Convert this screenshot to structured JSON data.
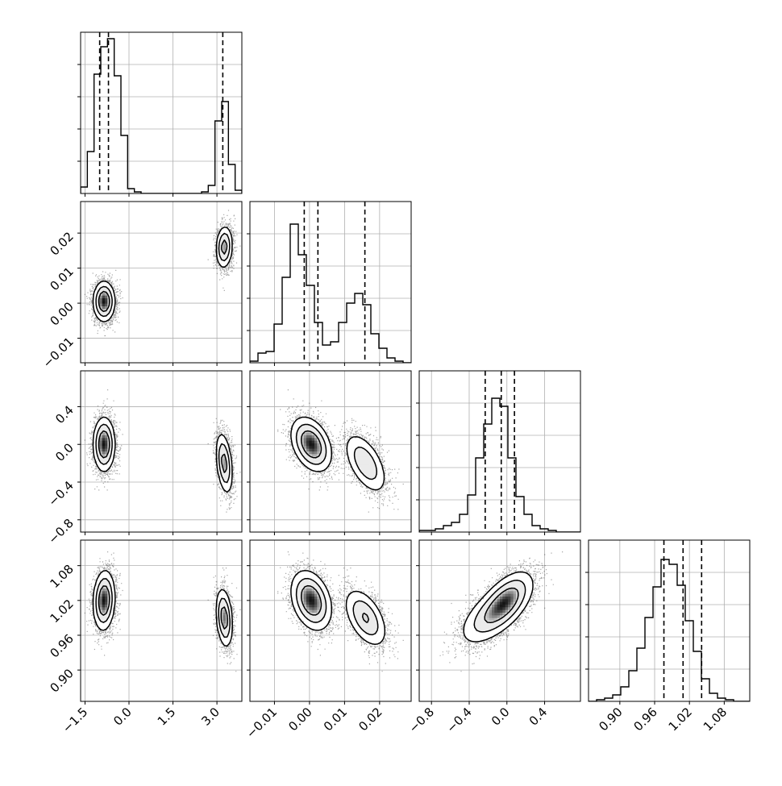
{
  "chart_data": {
    "type": "corner",
    "parameters": [
      {
        "range": [
          -1.65,
          3.85
        ],
        "ticks": [
          -1.5,
          0.0,
          1.5,
          3.0
        ],
        "tick_labels": [
          "−1.5",
          "0.0",
          "1.5",
          "3.0"
        ],
        "quantiles": [
          -1.0,
          -0.7,
          3.2
        ]
      },
      {
        "range": [
          -0.017,
          0.029
        ],
        "ticks": [
          -0.01,
          0.0,
          0.01,
          0.02
        ],
        "tick_labels": [
          "−0.01",
          "0.00",
          "0.01",
          "0.02"
        ],
        "quantiles": [
          -0.0015,
          0.0024,
          0.0158
        ]
      },
      {
        "range": [
          -0.93,
          0.78
        ],
        "ticks": [
          -0.8,
          -0.4,
          0.0,
          0.4
        ],
        "tick_labels": [
          "−0.8",
          "−0.4",
          "0.0",
          "0.4"
        ],
        "quantiles": [
          -0.23,
          -0.06,
          0.08
        ]
      },
      {
        "range": [
          0.846,
          1.124
        ],
        "ticks": [
          0.9,
          0.96,
          1.02,
          1.08
        ],
        "tick_labels": [
          "0.90",
          "0.96",
          "1.02",
          "1.08"
        ],
        "quantiles": [
          0.976,
          1.009,
          1.041
        ]
      }
    ],
    "histograms": [
      [
        0.04,
        0.26,
        0.74,
        0.91,
        0.96,
        0.73,
        0.36,
        0.03,
        0.01,
        0.0,
        0.0,
        0.0,
        0.0,
        0.0,
        0.0,
        0.0,
        0.0,
        0.0,
        0.01,
        0.05,
        0.45,
        0.57,
        0.18,
        0.02
      ],
      [
        0.01,
        0.06,
        0.07,
        0.24,
        0.53,
        0.86,
        0.67,
        0.48,
        0.25,
        0.11,
        0.13,
        0.25,
        0.37,
        0.43,
        0.36,
        0.18,
        0.09,
        0.03,
        0.01,
        0.0
      ],
      [
        0.01,
        0.01,
        0.02,
        0.04,
        0.06,
        0.11,
        0.23,
        0.46,
        0.67,
        0.83,
        0.78,
        0.46,
        0.22,
        0.11,
        0.04,
        0.02,
        0.01,
        0.0,
        0.0,
        0.0
      ],
      [
        0.0,
        0.01,
        0.02,
        0.04,
        0.09,
        0.19,
        0.33,
        0.52,
        0.71,
        0.88,
        0.85,
        0.72,
        0.5,
        0.31,
        0.14,
        0.05,
        0.02,
        0.01,
        0.0,
        0.0
      ]
    ],
    "histogram_ylim": [
      0,
      1.0
    ],
    "modes": [
      {
        "weight": 0.62,
        "mean": [
          -0.85,
          0.0005,
          0.0,
          1.02
        ],
        "sd": [
          0.18,
          0.0028,
          0.14,
          0.025
        ],
        "corr": [
          [
            1,
            0,
            0,
            0.1
          ],
          [
            0,
            1,
            -0.35,
            -0.3
          ],
          [
            0,
            -0.35,
            1,
            0.55
          ],
          [
            0.1,
            -0.3,
            0.55,
            1
          ]
        ]
      },
      {
        "weight": 0.38,
        "mean": [
          3.25,
          0.016,
          -0.2,
          0.99
        ],
        "sd": [
          0.14,
          0.003,
          0.16,
          0.025
        ],
        "corr": [
          [
            1,
            0.1,
            -0.35,
            -0.25
          ],
          [
            0.1,
            1,
            -0.55,
            -0.5
          ],
          [
            -0.35,
            -0.55,
            1,
            0.55
          ],
          [
            -0.25,
            -0.5,
            0.55,
            1
          ]
        ]
      }
    ],
    "grid": true
  }
}
